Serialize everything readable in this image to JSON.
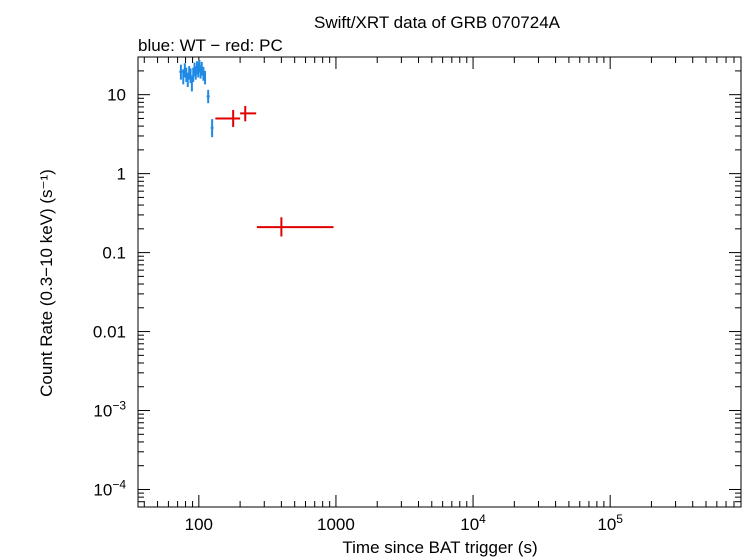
{
  "chart_data": {
    "type": "scatter",
    "title": "Swift/XRT data of GRB 070724A",
    "subtitle": "blue: WT − red: PC",
    "xlabel": "Time since BAT trigger (s)",
    "ylabel": "Count Rate (0.3−10 keV) (s⁻¹)",
    "xscale": "log",
    "yscale": "log",
    "xlim": [
      36,
      900000
    ],
    "ylim": [
      6e-05,
      30
    ],
    "x_ticks": [
      {
        "value": 100,
        "base": "100",
        "exp": ""
      },
      {
        "value": 1000,
        "base": "1000",
        "exp": ""
      },
      {
        "value": 10000,
        "base": "10",
        "exp": "4"
      },
      {
        "value": 100000,
        "base": "10",
        "exp": "5"
      }
    ],
    "y_ticks": [
      {
        "value": 10,
        "base": "10",
        "exp": ""
      },
      {
        "value": 1,
        "base": "1",
        "exp": ""
      },
      {
        "value": 0.1,
        "base": "0.1",
        "exp": ""
      },
      {
        "value": 0.01,
        "base": "0.01",
        "exp": ""
      },
      {
        "value": 0.001,
        "base": "10",
        "exp": "−3"
      },
      {
        "value": 0.0001,
        "base": "10",
        "exp": "−4"
      }
    ],
    "grid": false,
    "series": [
      {
        "color": "#1f8ae6",
        "points": [
          {
            "x": 74,
            "xlo": 72,
            "xhi": 76,
            "y": 19.5,
            "ylo": 15.5,
            "yhi": 24
          },
          {
            "x": 77,
            "xlo": 76,
            "xhi": 78,
            "y": 17.0,
            "ylo": 13.5,
            "yhi": 21
          },
          {
            "x": 79,
            "xlo": 78,
            "xhi": 80,
            "y": 20.5,
            "ylo": 16.5,
            "yhi": 25
          },
          {
            "x": 81,
            "xlo": 80,
            "xhi": 82,
            "y": 18.0,
            "ylo": 14.5,
            "yhi": 22
          },
          {
            "x": 83,
            "xlo": 82,
            "xhi": 84,
            "y": 15.5,
            "ylo": 12.5,
            "yhi": 19
          },
          {
            "x": 85,
            "xlo": 84,
            "xhi": 86,
            "y": 19.0,
            "ylo": 15.5,
            "yhi": 23
          },
          {
            "x": 87,
            "xlo": 86,
            "xhi": 88,
            "y": 17.5,
            "ylo": 14.0,
            "yhi": 21.5
          },
          {
            "x": 89,
            "xlo": 88,
            "xhi": 90,
            "y": 14.0,
            "ylo": 11.0,
            "yhi": 17.5
          },
          {
            "x": 91,
            "xlo": 90,
            "xhi": 92,
            "y": 18.0,
            "ylo": 14.5,
            "yhi": 22
          },
          {
            "x": 93,
            "xlo": 92,
            "xhi": 94,
            "y": 21.0,
            "ylo": 17.0,
            "yhi": 25.5
          },
          {
            "x": 95,
            "xlo": 94,
            "xhi": 96,
            "y": 19.0,
            "ylo": 15.5,
            "yhi": 23
          },
          {
            "x": 97,
            "xlo": 96,
            "xhi": 98,
            "y": 22.0,
            "ylo": 18.0,
            "yhi": 26.5
          },
          {
            "x": 99,
            "xlo": 98,
            "xhi": 100,
            "y": 20.5,
            "ylo": 16.5,
            "yhi": 25
          },
          {
            "x": 101,
            "xlo": 100,
            "xhi": 102,
            "y": 23.0,
            "ylo": 19.0,
            "yhi": 27.5
          },
          {
            "x": 103,
            "xlo": 102,
            "xhi": 104,
            "y": 19.5,
            "ylo": 16.0,
            "yhi": 23.5
          },
          {
            "x": 105,
            "xlo": 104,
            "xhi": 106,
            "y": 21.5,
            "ylo": 17.5,
            "yhi": 26
          },
          {
            "x": 108,
            "xlo": 106,
            "xhi": 110,
            "y": 18.5,
            "ylo": 15.0,
            "yhi": 22.5
          },
          {
            "x": 111,
            "xlo": 110,
            "xhi": 112,
            "y": 16.5,
            "ylo": 13.5,
            "yhi": 20
          },
          {
            "x": 117,
            "xlo": 114,
            "xhi": 120,
            "y": 9.5,
            "ylo": 7.8,
            "yhi": 11.5
          },
          {
            "x": 125,
            "xlo": 122,
            "xhi": 128,
            "y": 3.8,
            "ylo": 2.9,
            "yhi": 4.9
          }
        ]
      },
      {
        "color": "#e00000",
        "points": [
          {
            "x": 178,
            "xlo": 132,
            "xhi": 200,
            "y": 5.0,
            "ylo": 3.9,
            "yhi": 6.4
          },
          {
            "x": 218,
            "xlo": 200,
            "xhi": 262,
            "y": 5.8,
            "ylo": 4.6,
            "yhi": 7.2
          },
          {
            "x": 400,
            "xlo": 265,
            "xhi": 960,
            "y": 0.21,
            "ylo": 0.16,
            "yhi": 0.28
          }
        ]
      }
    ]
  }
}
